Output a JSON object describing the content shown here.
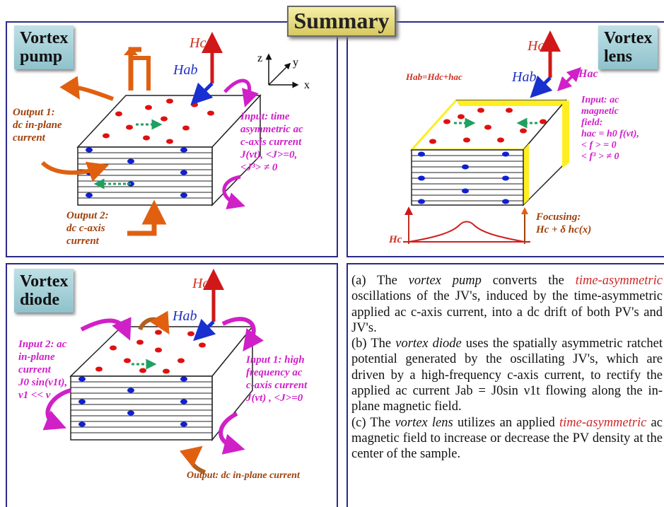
{
  "title": "Summary",
  "pump": {
    "tag_line1": "Vortex",
    "tag_line2": "pump",
    "hc": "Hc",
    "hab": "Hab",
    "axis_z": "z",
    "axis_y": "y",
    "axis_x": "x",
    "output1": [
      "Output 1:",
      "dc in-plane",
      "current"
    ],
    "output2": [
      "Output 2:",
      "dc c-axis",
      "current"
    ],
    "input": [
      "Input: time",
      "asymmetric ac",
      "c-axis current",
      "J(νt), <J>=0,",
      "<J³> ≠ 0"
    ]
  },
  "lens": {
    "tag_line1": "Vortex",
    "tag_line2": "lens",
    "hc": "Hc",
    "hab": "Hab",
    "hac": "Hac",
    "field_eq": "Hab=Hdc+hac",
    "input": [
      "Input: ac",
      "magnetic",
      "field:",
      "hac = h0 f(νt),",
      "< f > = 0",
      "< f³ > ≠ 0"
    ],
    "focusing": [
      "Focusing:",
      "Hc + δ hc(x)"
    ],
    "hc_bottom": "Hc"
  },
  "diode": {
    "tag_line1": "Vortex",
    "tag_line2": "diode",
    "hc": "Hc",
    "hab": "Hab",
    "input2": [
      "Input 2: ac",
      "in-plane",
      "current",
      "J0 sin(ν1t),",
      "ν1 << ν"
    ],
    "input1": [
      "Input 1: high",
      "frequency ac",
      "c-axis current",
      "J(νt) ,  <J>=0"
    ],
    "output": "Output: dc in-plane current"
  },
  "text": {
    "a_pre": "(a) The ",
    "a_em": "vortex pump",
    "a_mid": " converts the ",
    "a_red": "time-asymmetric",
    "a_post": " oscillations of the JV's, induced by the time-asymmetric applied ac c-axis current, into a dc drift of both PV's and JV's.",
    "b_pre": "(b) The ",
    "b_em": "vortex diode",
    "b_post": " uses the spatially asymmetric ratchet potential generated by the oscillating JV's, which are driven by a high-frequency c-axis current, to rectify the applied ac current Jab = J0sin ν1t flowing along the in-plane magnetic field.",
    "c_pre": "(c) The ",
    "c_em": "vortex lens",
    "c_mid": " utilizes an applied ",
    "c_red": "time-asymmetric",
    "c_post": " ac magnetic field to increase or decrease the PV density at the center of the sample."
  }
}
